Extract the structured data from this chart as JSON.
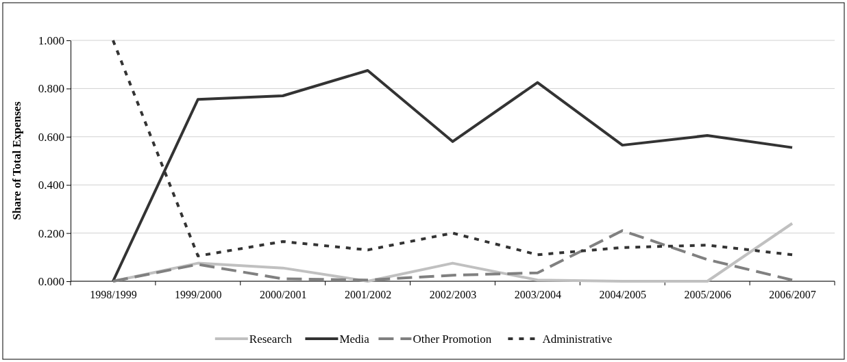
{
  "chart_data": {
    "type": "line",
    "ylabel": "Share of Total Expenses",
    "categories": [
      "1998/1999",
      "1999/2000",
      "2000/2001",
      "2001/2002",
      "2002/2003",
      "2003/2004",
      "2004/2005",
      "2005/2006",
      "2006/2007"
    ],
    "series": [
      {
        "name": "Research",
        "color": "#c0c0c0",
        "line_style": "solid",
        "values": [
          0,
          0.075,
          0.055,
          0,
          0.075,
          0.005,
          0,
          0,
          0.24
        ]
      },
      {
        "name": "Media",
        "color": "#333333",
        "line_style": "solid",
        "values": [
          0,
          0.755,
          0.77,
          0.875,
          0.58,
          0.825,
          0.565,
          0.605,
          0.555
        ]
      },
      {
        "name": "Other Promotion",
        "color": "#808080",
        "line_style": "dashed",
        "values": [
          0,
          0.07,
          0.01,
          0.005,
          0.025,
          0.035,
          0.21,
          0.09,
          0.005
        ]
      },
      {
        "name": "Administrative",
        "color": "#333333",
        "line_style": "dotted",
        "values": [
          1,
          0.105,
          0.165,
          0.13,
          0.2,
          0.11,
          0.14,
          0.15,
          0.11
        ]
      }
    ],
    "ylim": [
      0,
      1
    ],
    "yticks": [
      {
        "value": 0,
        "label": "0.000"
      },
      {
        "value": 0.2,
        "label": "0.200"
      },
      {
        "value": 0.4,
        "label": "0.400"
      },
      {
        "value": 0.6,
        "label": "0.600"
      },
      {
        "value": 0.8,
        "label": "0.800"
      },
      {
        "value": 1,
        "label": "1.000"
      }
    ],
    "grid": "y",
    "legend": "bottom",
    "marker": "none"
  }
}
